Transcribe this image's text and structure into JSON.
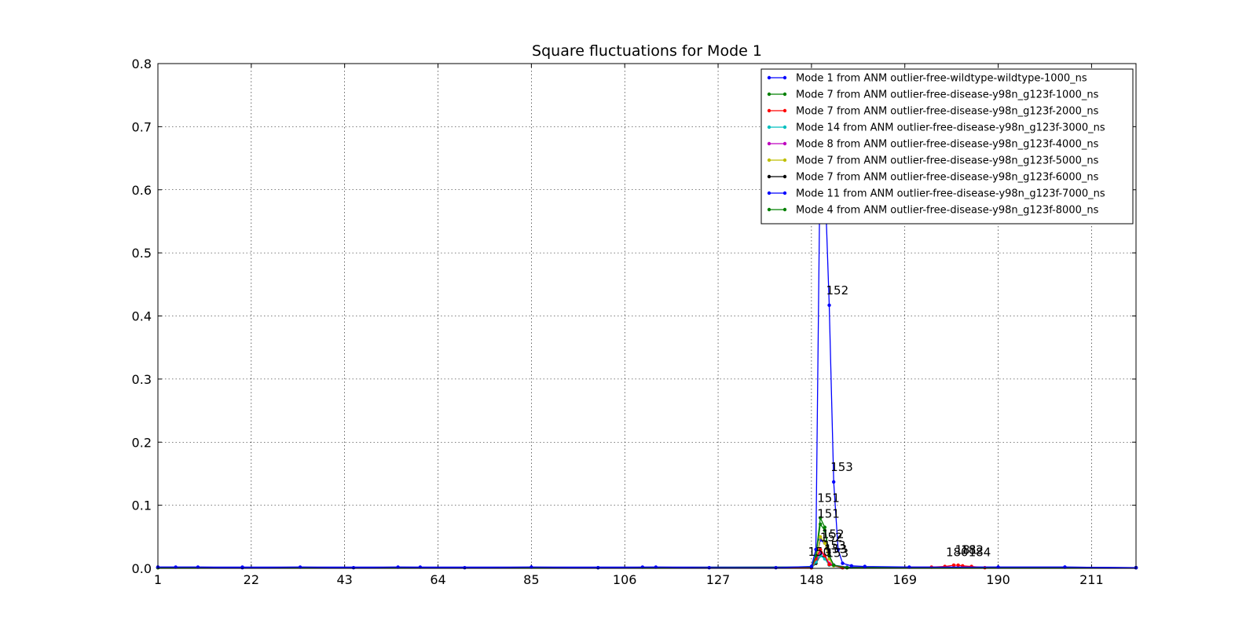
{
  "chart_data": {
    "type": "line",
    "title": "Square fluctuations for Mode 1",
    "xlabel": "",
    "ylabel": "",
    "xlim": [
      1,
      221
    ],
    "ylim": [
      0,
      0.8
    ],
    "xticks": [
      1,
      22,
      43,
      64,
      85,
      106,
      127,
      148,
      169,
      190,
      211
    ],
    "yticks": [
      "0.0",
      "0.1",
      "0.2",
      "0.3",
      "0.4",
      "0.5",
      "0.6",
      "0.7",
      "0.8"
    ],
    "grid": true,
    "legend_position": "top-right",
    "series": [
      {
        "name": "Mode 1 from ANM outlier-free-wildtype-wildtype-1000_ns",
        "color": "#0000ff",
        "points": [
          [
            1,
            0.002
          ],
          [
            5,
            0.002
          ],
          [
            10,
            0.002
          ],
          [
            20,
            0.001
          ],
          [
            33,
            0.002
          ],
          [
            45,
            0.001
          ],
          [
            55,
            0.002
          ],
          [
            70,
            0.001
          ],
          [
            85,
            0.002
          ],
          [
            100,
            0.001
          ],
          [
            113,
            0.002
          ],
          [
            125,
            0.001
          ],
          [
            140,
            0.001
          ],
          [
            148,
            0.003
          ],
          [
            149,
            0.03
          ],
          [
            150,
            0.68
          ],
          [
            151,
            0.62
          ],
          [
            152,
            0.417
          ],
          [
            153,
            0.137
          ],
          [
            154,
            0.03
          ],
          [
            155,
            0.008
          ],
          [
            157,
            0.004
          ],
          [
            160,
            0.003
          ],
          [
            170,
            0.002
          ],
          [
            190,
            0.002
          ],
          [
            205,
            0.002
          ],
          [
            221,
            0.001
          ]
        ]
      },
      {
        "name": "Mode 7 from ANM outlier-free-disease-y98n_g123f-1000_ns",
        "color": "#008000",
        "points": [
          [
            1,
            0.001
          ],
          [
            100,
            0.001
          ],
          [
            148,
            0.002
          ],
          [
            149,
            0.02
          ],
          [
            150,
            0.08
          ],
          [
            151,
            0.065
          ],
          [
            152,
            0.02
          ],
          [
            153,
            0.005
          ],
          [
            156,
            0.001
          ],
          [
            221,
            0.001
          ]
        ]
      },
      {
        "name": "Mode 7 from ANM outlier-free-disease-y98n_g123f-2000_ns",
        "color": "#ff0000",
        "points": [
          [
            1,
            0.001
          ],
          [
            148,
            0.001
          ],
          [
            149,
            0.015
          ],
          [
            150,
            0.03
          ],
          [
            151,
            0.02
          ],
          [
            152,
            0.006
          ],
          [
            155,
            0.001
          ],
          [
            175,
            0.002
          ],
          [
            178,
            0.003
          ],
          [
            180,
            0.005
          ],
          [
            181,
            0.005
          ],
          [
            182,
            0.004
          ],
          [
            184,
            0.003
          ],
          [
            187,
            0.001
          ],
          [
            221,
            0.001
          ]
        ]
      },
      {
        "name": "Mode 14 from ANM outlier-free-disease-y98n_g123f-3000_ns",
        "color": "#00bfbf",
        "points": [
          [
            1,
            0.001
          ],
          [
            148,
            0.001
          ],
          [
            149,
            0.01
          ],
          [
            150,
            0.02
          ],
          [
            151,
            0.015
          ],
          [
            152,
            0.005
          ],
          [
            155,
            0.001
          ],
          [
            221,
            0.001
          ]
        ]
      },
      {
        "name": "Mode 8 from ANM outlier-free-disease-y98n_g123f-4000_ns",
        "color": "#bf00bf",
        "points": [
          [
            1,
            0.001
          ],
          [
            148,
            0.001
          ],
          [
            149,
            0.012
          ],
          [
            150,
            0.025
          ],
          [
            151,
            0.02
          ],
          [
            152,
            0.008
          ],
          [
            155,
            0.001
          ],
          [
            221,
            0.001
          ]
        ]
      },
      {
        "name": "Mode 7 from ANM outlier-free-disease-y98n_g123f-5000_ns",
        "color": "#bfbf00",
        "points": [
          [
            1,
            0.001
          ],
          [
            148,
            0.001
          ],
          [
            149,
            0.01
          ],
          [
            150,
            0.05
          ],
          [
            151,
            0.04
          ],
          [
            152,
            0.015
          ],
          [
            153,
            0.004
          ],
          [
            156,
            0.001
          ],
          [
            221,
            0.001
          ]
        ]
      },
      {
        "name": "Mode 7 from ANM outlier-free-disease-y98n_g123f-6000_ns",
        "color": "#000000",
        "points": [
          [
            1,
            0.001
          ],
          [
            148,
            0.001
          ],
          [
            149,
            0.008
          ],
          [
            150,
            0.02
          ],
          [
            151,
            0.018
          ],
          [
            152,
            0.006
          ],
          [
            155,
            0.001
          ],
          [
            221,
            0.001
          ]
        ]
      },
      {
        "name": "Mode 11 from ANM outlier-free-disease-y98n_g123f-7000_ns",
        "color": "#0000ff",
        "points": [
          [
            1,
            0.002
          ],
          [
            20,
            0.002
          ],
          [
            60,
            0.002
          ],
          [
            110,
            0.002
          ],
          [
            148,
            0.002
          ],
          [
            149,
            0.015
          ],
          [
            150,
            0.045
          ],
          [
            151,
            0.04
          ],
          [
            152,
            0.02
          ],
          [
            153,
            0.005
          ],
          [
            156,
            0.002
          ],
          [
            205,
            0.002
          ],
          [
            221,
            0.001
          ]
        ]
      },
      {
        "name": "Mode 4 from ANM outlier-free-disease-y98n_g123f-8000_ns",
        "color": "#008000",
        "points": [
          [
            1,
            0.001
          ],
          [
            148,
            0.001
          ],
          [
            149,
            0.02
          ],
          [
            150,
            0.07
          ],
          [
            151,
            0.06
          ],
          [
            152,
            0.02
          ],
          [
            153,
            0.005
          ],
          [
            156,
            0.001
          ],
          [
            221,
            0.001
          ]
        ]
      }
    ],
    "annotations": [
      {
        "text": "152",
        "x": 152,
        "y": 0.417,
        "dx": -4,
        "dy": -14
      },
      {
        "text": "153",
        "x": 153,
        "y": 0.137,
        "dx": -4,
        "dy": -14
      },
      {
        "text": "151",
        "x": 150,
        "y": 0.105,
        "dx": -4,
        "dy": 0
      },
      {
        "text": "151",
        "x": 150,
        "y": 0.08,
        "dx": -4,
        "dy": 0
      },
      {
        "text": "152",
        "x": 151,
        "y": 0.048,
        "dx": -4,
        "dy": 0
      },
      {
        "text": "152",
        "x": 151,
        "y": 0.043,
        "dx": -6,
        "dy": 0
      },
      {
        "text": "153",
        "x": 151,
        "y": 0.03,
        "dx": -2,
        "dy": 0
      },
      {
        "text": "153",
        "x": 152,
        "y": 0.024,
        "dx": -6,
        "dy": 0
      },
      {
        "text": "150",
        "x": 149,
        "y": 0.02,
        "dx": -10,
        "dy": 0
      },
      {
        "text": "153",
        "x": 152,
        "y": 0.018,
        "dx": -4,
        "dy": 0
      },
      {
        "text": "181",
        "x": 181,
        "y": 0.023,
        "dx": -4,
        "dy": 0
      },
      {
        "text": "180",
        "x": 180,
        "y": 0.019,
        "dx": -10,
        "dy": 0
      },
      {
        "text": "182",
        "x": 182,
        "y": 0.023,
        "dx": -2,
        "dy": 0
      },
      {
        "text": "184",
        "x": 184,
        "y": 0.019,
        "dx": -4,
        "dy": 0
      }
    ]
  }
}
